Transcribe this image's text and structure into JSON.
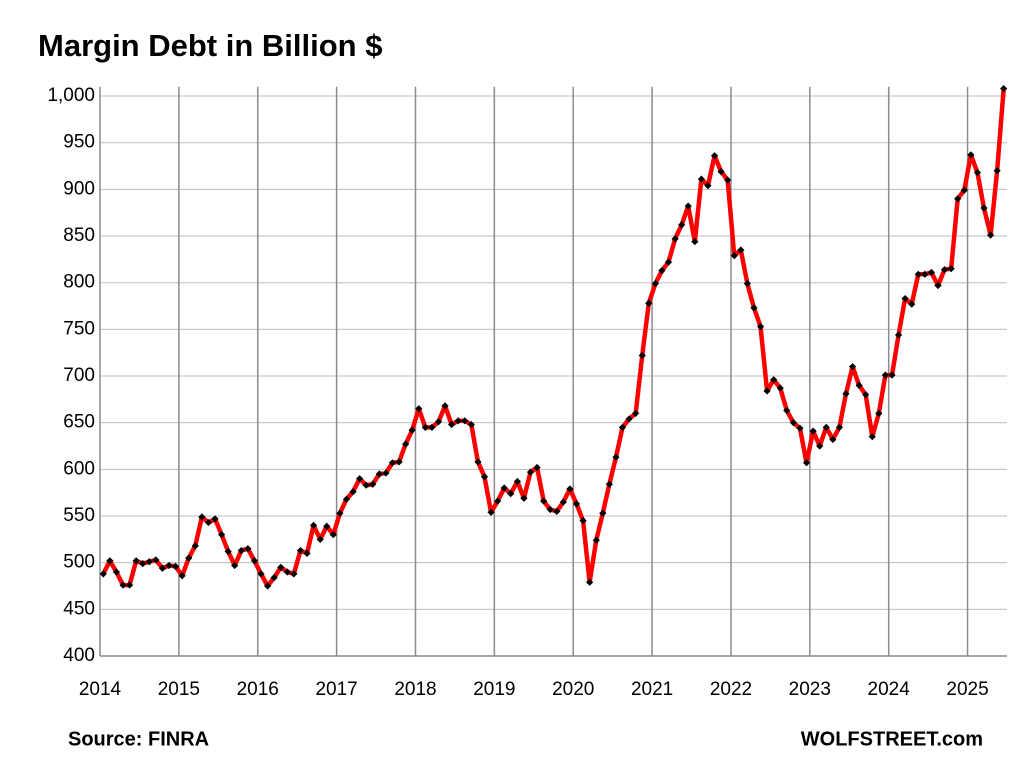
{
  "chart_data": {
    "type": "line",
    "title": "Margin Debt in Billion $",
    "source": "Source: FINRA",
    "credit": "WOLFSTREET.com",
    "x": [
      2014.042,
      2014.125,
      2014.208,
      2014.292,
      2014.375,
      2014.458,
      2014.542,
      2014.625,
      2014.708,
      2014.792,
      2014.875,
      2014.958,
      2015.042,
      2015.125,
      2015.208,
      2015.292,
      2015.375,
      2015.458,
      2015.542,
      2015.625,
      2015.708,
      2015.792,
      2015.875,
      2015.958,
      2016.042,
      2016.125,
      2016.208,
      2016.292,
      2016.375,
      2016.458,
      2016.542,
      2016.625,
      2016.708,
      2016.792,
      2016.875,
      2016.958,
      2017.042,
      2017.125,
      2017.208,
      2017.292,
      2017.375,
      2017.458,
      2017.542,
      2017.625,
      2017.708,
      2017.792,
      2017.875,
      2017.958,
      2018.042,
      2018.125,
      2018.208,
      2018.292,
      2018.375,
      2018.458,
      2018.542,
      2018.625,
      2018.708,
      2018.792,
      2018.875,
      2018.958,
      2019.042,
      2019.125,
      2019.208,
      2019.292,
      2019.375,
      2019.458,
      2019.542,
      2019.625,
      2019.708,
      2019.792,
      2019.875,
      2019.958,
      2020.042,
      2020.125,
      2020.208,
      2020.292,
      2020.375,
      2020.458,
      2020.542,
      2020.625,
      2020.708,
      2020.792,
      2020.875,
      2020.958,
      2021.042,
      2021.125,
      2021.208,
      2021.292,
      2021.375,
      2021.458,
      2021.542,
      2021.625,
      2021.708,
      2021.792,
      2021.875,
      2021.958,
      2022.042,
      2022.125,
      2022.208,
      2022.292,
      2022.375,
      2022.458,
      2022.542,
      2022.625,
      2022.708,
      2022.792,
      2022.875,
      2022.958,
      2023.042,
      2023.125,
      2023.208,
      2023.292,
      2023.375,
      2023.458,
      2023.542,
      2023.625,
      2023.708,
      2023.792,
      2023.875,
      2023.958,
      2024.042,
      2024.125,
      2024.208,
      2024.292,
      2024.375,
      2024.458,
      2024.542,
      2024.625,
      2024.708,
      2024.792,
      2024.875,
      2024.958,
      2025.042,
      2025.125,
      2025.208,
      2025.292,
      2025.375,
      2025.458
    ],
    "series": [
      {
        "color": "#ff0000",
        "marker_color": "#000000",
        "values": [
          488,
          502,
          490,
          476,
          476,
          502,
          499,
          501,
          503,
          494,
          497,
          496,
          486,
          505,
          518,
          549,
          543,
          547,
          530,
          512,
          497,
          513,
          515,
          502,
          488,
          475,
          484,
          495,
          490,
          488,
          513,
          510,
          540,
          525,
          539,
          530,
          553,
          568,
          576,
          590,
          583,
          584,
          595,
          596,
          607,
          608,
          627,
          642,
          665,
          645,
          645,
          651,
          668,
          648,
          652,
          652,
          648,
          608,
          592,
          554,
          566,
          580,
          574,
          587,
          569,
          597,
          602,
          566,
          557,
          555,
          565,
          579,
          563,
          545,
          479,
          524,
          553,
          584,
          613,
          645,
          654,
          660,
          722,
          778,
          799,
          813,
          822,
          847,
          862,
          882,
          844,
          911,
          904,
          936,
          919,
          910,
          829,
          835,
          799,
          773,
          753,
          684,
          696,
          687,
          663,
          650,
          644,
          607,
          641,
          625,
          645,
          632,
          645,
          681,
          710,
          690,
          680,
          635,
          660,
          701,
          701,
          744,
          783,
          777,
          809,
          809,
          811,
          797,
          814,
          815,
          890,
          899,
          937,
          918,
          880,
          851,
          920,
          1008
        ]
      }
    ],
    "xlim": [
      2014,
      2025.5
    ],
    "xticks": [
      2014,
      2015,
      2016,
      2017,
      2018,
      2019,
      2020,
      2021,
      2022,
      2023,
      2024,
      2025
    ],
    "ylim": [
      400,
      1010
    ],
    "yticks": [
      400,
      450,
      500,
      550,
      600,
      650,
      700,
      750,
      800,
      850,
      900,
      950,
      {
        "value": 1000,
        "label": "1,000"
      }
    ],
    "grid": true
  }
}
